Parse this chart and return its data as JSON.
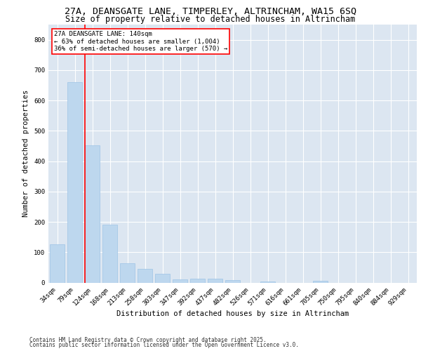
{
  "title_line1": "27A, DEANSGATE LANE, TIMPERLEY, ALTRINCHAM, WA15 6SQ",
  "title_line2": "Size of property relative to detached houses in Altrincham",
  "xlabel": "Distribution of detached houses by size in Altrincham",
  "ylabel": "Number of detached properties",
  "bar_color": "#bdd7ee",
  "bar_edge_color": "#9dc3e6",
  "fig_bg_color": "#ffffff",
  "plot_bg_color": "#dce6f1",
  "categories": [
    "34sqm",
    "79sqm",
    "124sqm",
    "168sqm",
    "213sqm",
    "258sqm",
    "303sqm",
    "347sqm",
    "392sqm",
    "437sqm",
    "482sqm",
    "526sqm",
    "571sqm",
    "616sqm",
    "661sqm",
    "705sqm",
    "750sqm",
    "795sqm",
    "840sqm",
    "884sqm",
    "929sqm"
  ],
  "values": [
    127,
    660,
    452,
    190,
    63,
    46,
    28,
    10,
    13,
    13,
    7,
    0,
    4,
    0,
    0,
    6,
    0,
    0,
    0,
    0,
    0
  ],
  "ylim": [
    0,
    850
  ],
  "yticks": [
    0,
    100,
    200,
    300,
    400,
    500,
    600,
    700,
    800
  ],
  "vline_x_index": 2,
  "vline_color": "#ff0000",
  "annotation_text": "27A DEANSGATE LANE: 140sqm\n← 63% of detached houses are smaller (1,004)\n36% of semi-detached houses are larger (570) →",
  "annotation_box_color": "#ffffff",
  "annotation_box_edge": "#ff0000",
  "footer_line1": "Contains HM Land Registry data © Crown copyright and database right 2025.",
  "footer_line2": "Contains public sector information licensed under the Open Government Licence v3.0.",
  "grid_color": "#ffffff",
  "title_fontsize": 9.5,
  "subtitle_fontsize": 8.5,
  "axis_label_fontsize": 7.5,
  "tick_fontsize": 6.5,
  "annotation_fontsize": 6.5,
  "footer_fontsize": 5.5
}
